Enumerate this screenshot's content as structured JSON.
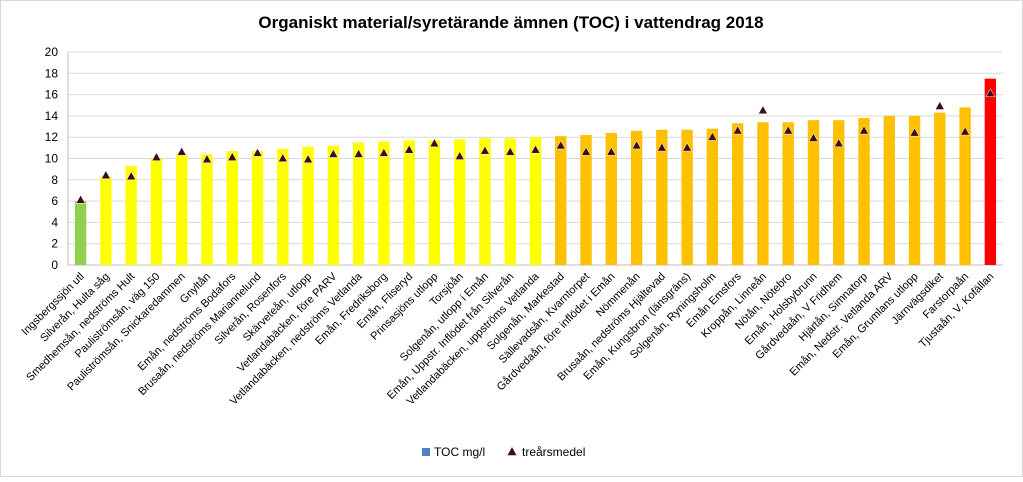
{
  "chart_data": {
    "type": "bar",
    "title": "Organiskt material/syretärande ämnen (TOC) i vattendrag 2018",
    "xlabel": "",
    "ylabel": "",
    "ylim": [
      0,
      20
    ],
    "yticks": [
      0,
      2,
      4,
      6,
      8,
      10,
      12,
      14,
      16,
      18,
      20
    ],
    "grid": true,
    "legend_position": "bottom",
    "categories": [
      "Ingsbergssjön utl",
      "Silverån, Hulta såg",
      "Smedhemsån, nedströms Hult",
      "Pauliströmsån, väg 150",
      "Pauliströmsån, Snickaredammen",
      "Gnyltån",
      "Emån, nedströms Bodafors",
      "Brusaån, nedströms Mariannelund",
      "Silverån, Rosenfors",
      "Skärveteån, utlopp",
      "Vetlandabäcken, före PARV",
      "Vetlandabäcken, nedströms Vetlanda",
      "Emån, Fredriksborg",
      "Emån, Fliseryd",
      "Prinsasjöns utlopp",
      "Torsjöån",
      "Solgenån, utlopp i Emån",
      "Emån, Uppstr. Inflödet från Silverån",
      "Vetlandabäcken, uppströms Vetlanda",
      "Solgenån, Markestad",
      "Sällevadsån, Kvarntorpet",
      "Gårdvedaån, före inflödet i Emån",
      "Nömmenån",
      "Brusaån, nedströms Hjältevad",
      "Emån, Kungsbron (länsgräns)",
      "Solgenån, Ryningsholm",
      "Emån Emsfors",
      "Kroppån, Linneån",
      "Nötån, Nötebro",
      "Emån, Holsbybrunn",
      "Gårdvedaån, V Fridhem",
      "Hjärtån, Simnatorp",
      "Emån, Nedstr. Vetlanda ARV",
      "Emån, Grumlans utlopp",
      "Järnvägsdiket",
      "Farstorpaån",
      "Tjustaån, V. Kofällan"
    ],
    "series": [
      {
        "name": "TOC mg/l",
        "type": "bar",
        "values": [
          6.0,
          8.3,
          9.3,
          10.0,
          10.4,
          10.4,
          10.7,
          10.7,
          10.9,
          11.1,
          11.2,
          11.5,
          11.6,
          11.7,
          11.7,
          11.8,
          11.9,
          11.9,
          12.0,
          12.1,
          12.2,
          12.4,
          12.6,
          12.7,
          12.7,
          12.8,
          13.3,
          13.4,
          13.4,
          13.6,
          13.6,
          13.8,
          14.0,
          14.0,
          14.3,
          14.8,
          17.5
        ],
        "colors": [
          "#92d050",
          "#ffff00",
          "#ffff00",
          "#ffff00",
          "#ffff00",
          "#ffff00",
          "#ffff00",
          "#ffff00",
          "#ffff00",
          "#ffff00",
          "#ffff00",
          "#ffff00",
          "#ffff00",
          "#ffff00",
          "#ffff00",
          "#ffff00",
          "#ffff00",
          "#ffff00",
          "#ffff00",
          "#ffc000",
          "#ffc000",
          "#ffc000",
          "#ffc000",
          "#ffc000",
          "#ffc000",
          "#ffc000",
          "#ffc000",
          "#ffc000",
          "#ffc000",
          "#ffc000",
          "#ffc000",
          "#ffc000",
          "#ffc000",
          "#ffc000",
          "#ffc000",
          "#ffc000",
          "#ff0000"
        ]
      },
      {
        "name": "treårsmedel",
        "type": "marker",
        "values": [
          6.1,
          8.4,
          8.3,
          10.1,
          10.6,
          9.9,
          10.1,
          10.5,
          10.0,
          9.9,
          10.4,
          10.4,
          10.5,
          10.8,
          11.4,
          10.2,
          10.7,
          10.6,
          10.8,
          11.2,
          10.6,
          10.6,
          11.2,
          11.0,
          11.0,
          12.0,
          12.6,
          14.5,
          12.6,
          11.9,
          11.4,
          12.6,
          null,
          12.4,
          14.9,
          12.5,
          16.1
        ],
        "color": "#3d0f14"
      }
    ],
    "legend": [
      {
        "label": "TOC mg/l",
        "color": "#4f81bd",
        "shape": "square"
      },
      {
        "label": "treårsmedel",
        "color": "#3d0f14",
        "shape": "triangle"
      }
    ]
  }
}
